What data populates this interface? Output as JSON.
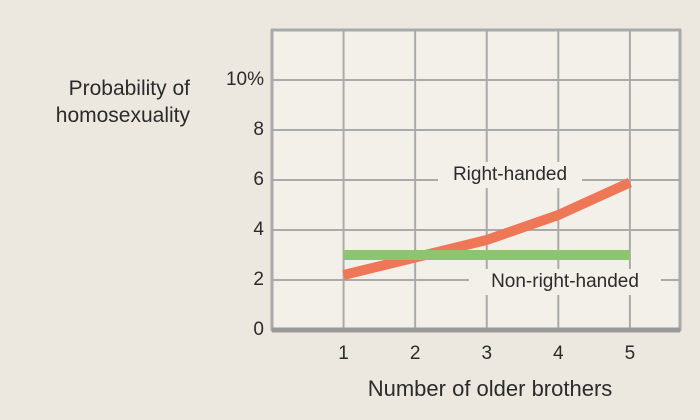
{
  "chart_data": {
    "type": "line",
    "xlabel": "Number of older brothers",
    "ylabel": "Probability of homosexuality",
    "x": [
      1,
      2,
      3,
      4,
      5
    ],
    "series": [
      {
        "name": "Right-handed",
        "color": "#ee7758",
        "values": [
          2.2,
          2.9,
          3.6,
          4.6,
          5.9
        ]
      },
      {
        "name": "Non-right-handed",
        "color": "#8dc46e",
        "values": [
          3.0,
          3.0,
          3.0,
          3.0,
          3.0
        ]
      }
    ],
    "xlim": [
      0,
      5.7
    ],
    "xticks": [
      1,
      2,
      3,
      4,
      5
    ],
    "ylim": [
      0,
      12
    ],
    "yticks": [
      0,
      2,
      4,
      6,
      8,
      {
        "value": 10,
        "label": "10%"
      }
    ],
    "grid": true
  }
}
